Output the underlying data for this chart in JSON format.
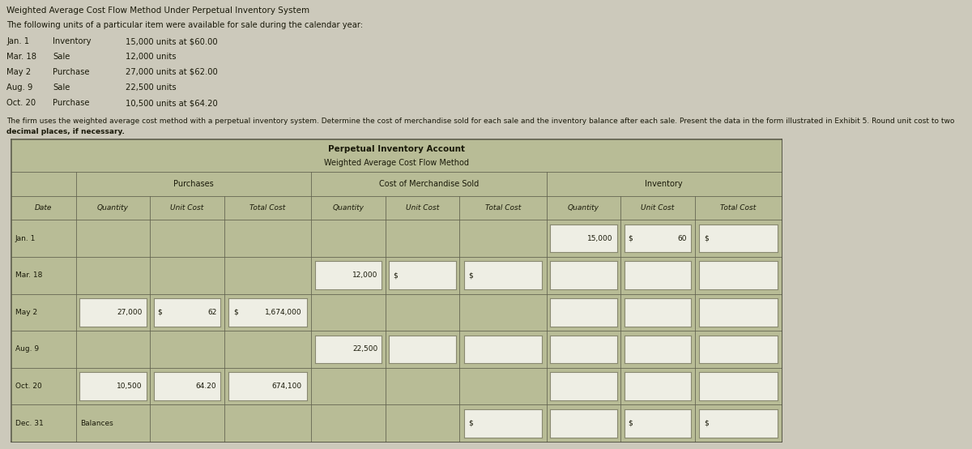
{
  "title_main": "Weighted Average Cost Flow Method Under Perpetual Inventory System",
  "intro_text": "The following units of a particular item were available for sale during the calendar year:",
  "items": [
    {
      "date": "Jan. 1",
      "type": "Inventory",
      "detail": "15,000 units at $60.00"
    },
    {
      "date": "Mar. 18",
      "type": "Sale",
      "detail": "12,000 units"
    },
    {
      "date": "May 2",
      "type": "Purchase",
      "detail": "27,000 units at $62.00"
    },
    {
      "date": "Aug. 9",
      "type": "Sale",
      "detail": "22,500 units"
    },
    {
      "date": "Oct. 20",
      "type": "Purchase",
      "detail": "10,500 units at $64.20"
    }
  ],
  "footer_line1": "The firm uses the weighted average cost method with a perpetual inventory system. Determine the cost of merchandise sold for each sale and the inventory balance after each sale. Present the data in the form illustrated in Exhibit 5. Round unit cost to two",
  "footer_line2_normal": "decimal places, if necessary.",
  "footer_bold": "decimal places, if necessary.",
  "table_title1": "Perpetual Inventory Account",
  "table_title2": "Weighted Average Cost Flow Method",
  "col_headers": [
    "Date",
    "Quantity",
    "Unit Cost",
    "Total Cost",
    "Quantity",
    "Unit Cost",
    "Total Cost",
    "Quantity",
    "Unit Cost",
    "Total Cost"
  ],
  "page_bg": "#ccc9bb",
  "table_bg": "#b8bc96",
  "input_bg": "#eeeee4",
  "input_edge": "#888870",
  "text_color": "#1a1a0a",
  "rows": [
    {
      "date": "Jan. 1",
      "p_qty": "",
      "p_uc_pre": "",
      "p_uc": "",
      "p_tc_pre": "",
      "p_tc": "",
      "s_qty": "",
      "s_uc_pre": "",
      "s_tc_pre": "",
      "i_qty": "15,000",
      "i_uc_pre": "$",
      "i_uc": "60",
      "i_tc_pre": "$",
      "p_qty_box": false,
      "p_uc_box": false,
      "p_tc_box": false,
      "s_qty_box": false,
      "s_uc_box": false,
      "s_tc_box": false,
      "i_qty_box": true,
      "i_uc_box": true,
      "i_tc_box": true
    },
    {
      "date": "Mar. 18",
      "p_qty": "",
      "p_uc_pre": "",
      "p_uc": "",
      "p_tc_pre": "",
      "p_tc": "",
      "s_qty": "12,000",
      "s_uc_pre": "$",
      "s_tc_pre": "$",
      "i_qty": "",
      "i_uc_pre": "",
      "i_uc": "",
      "i_tc_pre": "",
      "p_qty_box": false,
      "p_uc_box": false,
      "p_tc_box": false,
      "s_qty_box": true,
      "s_uc_box": true,
      "s_tc_box": true,
      "i_qty_box": true,
      "i_uc_box": true,
      "i_tc_box": true
    },
    {
      "date": "May 2",
      "p_qty": "27,000",
      "p_uc_pre": "$",
      "p_uc": "62",
      "p_tc_pre": "$",
      "p_tc": "1,674,000",
      "s_qty": "",
      "s_uc_pre": "",
      "s_tc_pre": "",
      "i_qty": "",
      "i_uc_pre": "",
      "i_uc": "",
      "i_tc_pre": "",
      "p_qty_box": true,
      "p_uc_box": true,
      "p_tc_box": true,
      "s_qty_box": false,
      "s_uc_box": false,
      "s_tc_box": false,
      "i_qty_box": true,
      "i_uc_box": true,
      "i_tc_box": true
    },
    {
      "date": "Aug. 9",
      "p_qty": "",
      "p_uc_pre": "",
      "p_uc": "",
      "p_tc_pre": "",
      "p_tc": "",
      "s_qty": "22,500",
      "s_uc_pre": "",
      "s_tc_pre": "",
      "i_qty": "",
      "i_uc_pre": "",
      "i_uc": "",
      "i_tc_pre": "",
      "p_qty_box": false,
      "p_uc_box": false,
      "p_tc_box": false,
      "s_qty_box": true,
      "s_uc_box": true,
      "s_tc_box": true,
      "i_qty_box": true,
      "i_uc_box": true,
      "i_tc_box": true
    },
    {
      "date": "Oct. 20",
      "p_qty": "10,500",
      "p_uc_pre": "",
      "p_uc": "64.20",
      "p_tc_pre": "",
      "p_tc": "674,100",
      "s_qty": "",
      "s_uc_pre": "",
      "s_tc_pre": "",
      "i_qty": "",
      "i_uc_pre": "",
      "i_uc": "",
      "i_tc_pre": "",
      "p_qty_box": true,
      "p_uc_box": true,
      "p_tc_box": true,
      "s_qty_box": false,
      "s_uc_box": false,
      "s_tc_box": false,
      "i_qty_box": true,
      "i_uc_box": true,
      "i_tc_box": true
    },
    {
      "date": "Dec. 31",
      "p_qty": "Balances",
      "p_uc_pre": "",
      "p_uc": "",
      "p_tc_pre": "",
      "p_tc": "",
      "s_qty": "",
      "s_uc_pre": "",
      "s_tc_pre": "$",
      "i_qty": "",
      "i_uc_pre": "$",
      "i_uc": "",
      "i_tc_pre": "$",
      "p_qty_box": false,
      "p_uc_box": false,
      "p_tc_box": false,
      "s_qty_box": false,
      "s_uc_box": false,
      "s_tc_box": true,
      "i_qty_box": true,
      "i_uc_box": true,
      "i_tc_box": true
    }
  ]
}
